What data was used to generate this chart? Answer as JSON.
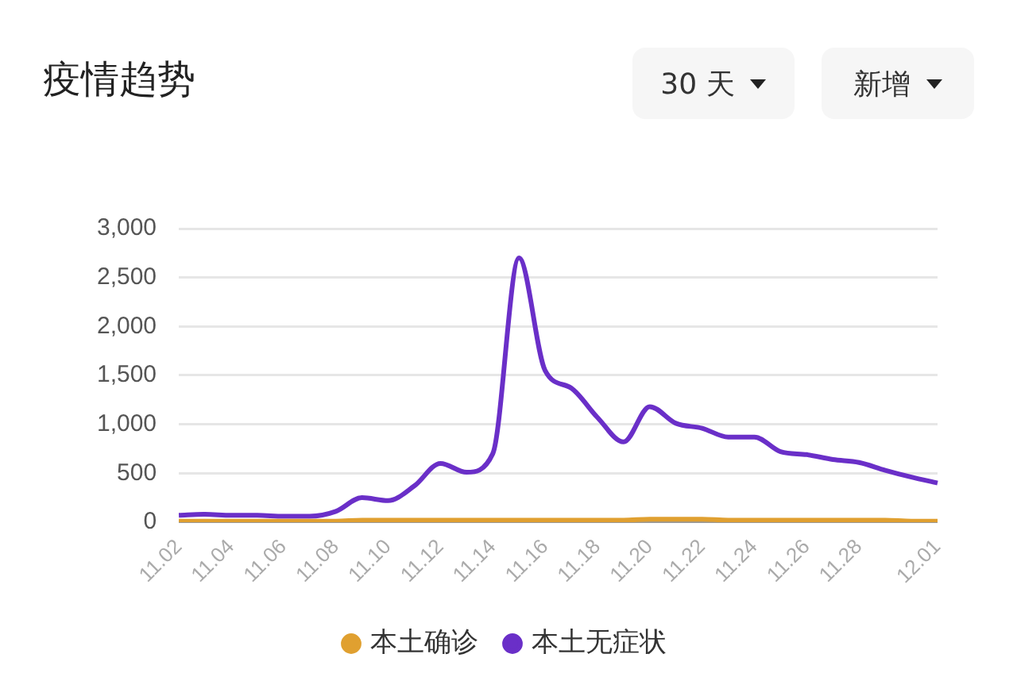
{
  "chart_data": {
    "type": "line",
    "title": "疫情趋势",
    "annotations": [
      "30 天",
      "新增"
    ],
    "categories": [
      "11.02",
      null,
      "11.04",
      null,
      "11.06",
      null,
      "11.08",
      null,
      "11.10",
      null,
      "11.12",
      null,
      "11.14",
      null,
      "11.16",
      null,
      "11.18",
      null,
      "11.20",
      null,
      "11.22",
      null,
      "11.24",
      null,
      "11.26",
      null,
      "11.28",
      null,
      null,
      "12.01"
    ],
    "series": [
      {
        "name": "本土确诊",
        "color": "#e0a030",
        "values": [
          10,
          10,
          10,
          10,
          10,
          10,
          10,
          20,
          20,
          20,
          20,
          20,
          20,
          20,
          20,
          20,
          20,
          20,
          30,
          30,
          30,
          20,
          20,
          20,
          20,
          20,
          20,
          20,
          10,
          10
        ]
      },
      {
        "name": "本土无症状",
        "color": "#6a2fc8",
        "values": [
          70,
          80,
          70,
          70,
          60,
          60,
          110,
          250,
          220,
          370,
          600,
          510,
          700,
          2700,
          1550,
          1370,
          1070,
          820,
          1180,
          1010,
          960,
          870,
          870,
          720,
          690,
          640,
          610,
          530,
          460,
          400
        ]
      }
    ],
    "ylim": [
      0,
      3000
    ],
    "yticks": [
      0,
      500,
      {
        "value": 1000,
        "label": "1,000"
      },
      {
        "value": 1500,
        "label": "1,500"
      },
      {
        "value": 2000,
        "label": "2,000"
      },
      {
        "value": 2500,
        "label": "2,500"
      },
      {
        "value": 3000,
        "label": "3,000"
      }
    ],
    "grid": "y",
    "legend": "bottom",
    "marker": "none",
    "line_style": "solid"
  }
}
